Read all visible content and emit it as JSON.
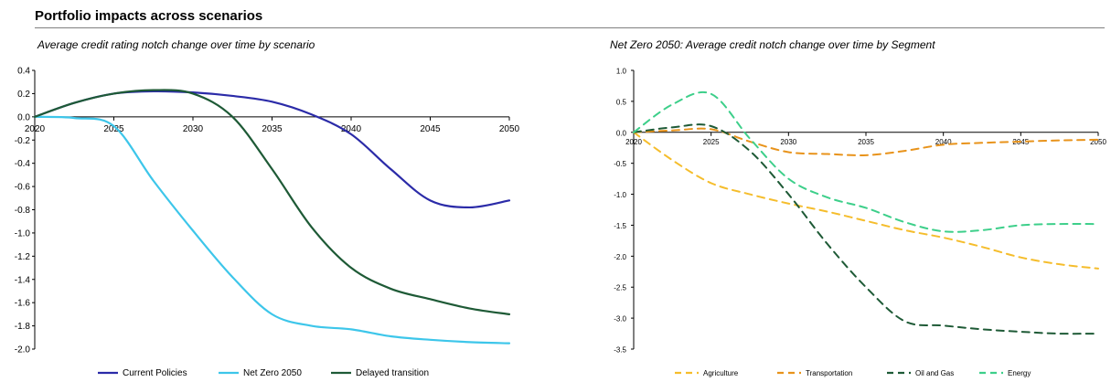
{
  "page": {
    "title": "Portfolio impacts across scenarios"
  },
  "chart_data": [
    {
      "type": "line",
      "title": "Average credit rating notch change over time by scenario",
      "xlabel": "",
      "ylabel": "",
      "x": [
        2020,
        2022.5,
        2025,
        2027.5,
        2030,
        2032.5,
        2035,
        2037.5,
        2040,
        2042.5,
        2045,
        2047.5,
        2050
      ],
      "xticks": [
        "2020",
        "2025",
        "2030",
        "2035",
        "2040",
        "2045",
        "2050"
      ],
      "yticks": [
        "0.4",
        "0.2",
        "0.0",
        "-0.2",
        "-0.4",
        "-0.6",
        "-0.8",
        "-1.0",
        "-1.2",
        "-1.4",
        "-1.6",
        "-1.8",
        "-2.0"
      ],
      "ylim": [
        -2.0,
        0.4
      ],
      "series": [
        {
          "name": "Current Policies",
          "color": "#2b2ba8",
          "values": [
            0.0,
            0.12,
            0.2,
            0.22,
            0.21,
            0.18,
            0.13,
            0.02,
            -0.15,
            -0.45,
            -0.72,
            -0.78,
            -0.72
          ]
        },
        {
          "name": "Net Zero 2050",
          "color": "#3dc6ea",
          "values": [
            0.0,
            -0.01,
            -0.08,
            -0.55,
            -0.98,
            -1.38,
            -1.7,
            -1.8,
            -1.83,
            -1.89,
            -1.92,
            -1.94,
            -1.95
          ]
        },
        {
          "name": "Delayed transition",
          "color": "#1e5a36",
          "values": [
            0.0,
            0.12,
            0.2,
            0.23,
            0.2,
            0.0,
            -0.45,
            -0.95,
            -1.3,
            -1.48,
            -1.57,
            -1.65,
            -1.7
          ]
        }
      ],
      "grid": false,
      "legend": "bottom"
    },
    {
      "type": "line",
      "title": "Net Zero 2050: Average credit notch change over time by Segment",
      "xlabel": "",
      "ylabel": "",
      "x": [
        2020,
        2022.5,
        2025,
        2027.5,
        2030,
        2032.5,
        2035,
        2037.5,
        2040,
        2042.5,
        2045,
        2047.5,
        2050
      ],
      "xticks": [
        "2020",
        "2025",
        "2030",
        "2035",
        "2040",
        "2045",
        "2050"
      ],
      "yticks": [
        "1.0",
        "0.5",
        "0.0",
        "-0.5",
        "-1.0",
        "-1.5",
        "-2.0",
        "-2.5",
        "-3.0",
        "-3.5"
      ],
      "ylim": [
        -3.5,
        1.0
      ],
      "series": [
        {
          "name": "Agriculture",
          "color": "#f5bd2c",
          "values": [
            0.0,
            -0.45,
            -0.82,
            -1.0,
            -1.15,
            -1.28,
            -1.43,
            -1.58,
            -1.7,
            -1.85,
            -2.02,
            -2.13,
            -2.2
          ]
        },
        {
          "name": "Transportation",
          "color": "#e8931b",
          "values": [
            0.0,
            0.03,
            0.05,
            -0.15,
            -0.32,
            -0.35,
            -0.37,
            -0.3,
            -0.2,
            -0.17,
            -0.15,
            -0.13,
            -0.12
          ]
        },
        {
          "name": "Oil and Gas",
          "color": "#1e5a36",
          "values": [
            0.0,
            0.08,
            0.1,
            -0.3,
            -1.0,
            -1.8,
            -2.5,
            -3.05,
            -3.12,
            -3.18,
            -3.22,
            -3.25,
            -3.25
          ]
        },
        {
          "name": "Energy",
          "color": "#3dcf8a",
          "values": [
            0.0,
            0.45,
            0.62,
            -0.1,
            -0.75,
            -1.05,
            -1.22,
            -1.45,
            -1.6,
            -1.58,
            -1.5,
            -1.48,
            -1.48
          ]
        }
      ],
      "grid": false,
      "legend": "bottom"
    }
  ]
}
